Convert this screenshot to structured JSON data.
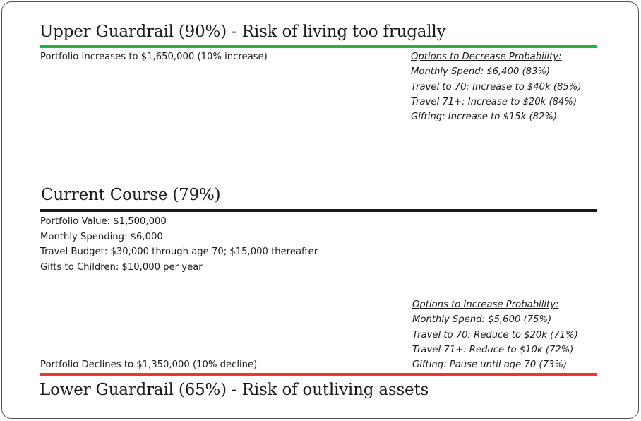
{
  "colors": {
    "upper_line": "#22b04b",
    "current_line": "#1a1a1a",
    "lower_line": "#e53935",
    "text": "#1a1a1a",
    "border": "#555555"
  },
  "upper": {
    "heading": "Upper Guardrail (90%) - Risk of living too frugally",
    "trigger": "Portfolio Increases to $1,650,000 (10% increase)",
    "options_title": "Options to Decrease Probability:",
    "options": [
      "Monthly Spend: $6,400 (83%)",
      "Travel to 70: Increase to $40k (85%)",
      "Travel 71+: Increase to $20k (84%)",
      "Gifting: Increase to $15k (82%)"
    ]
  },
  "current": {
    "heading": "Current Course (79%)",
    "details": [
      "Portfolio Value: $1,500,000",
      "Monthly Spending: $6,000",
      "Travel Budget: $30,000 through age 70; $15,000 thereafter",
      "Gifts to Children: $10,000 per year"
    ]
  },
  "lower": {
    "heading": "Lower Guardrail (65%) - Risk of outliving assets",
    "trigger": "Portfolio Declines to $1,350,000 (10% decline)",
    "options_title": "Options to Increase Probability:",
    "options": [
      "Monthly Spend: $5,600 (75%)",
      "Travel to 70: Reduce to $20k (71%)",
      "Travel 71+: Reduce to $10k (72%)",
      "Gifting: Pause until age 70 (73%)"
    ]
  }
}
